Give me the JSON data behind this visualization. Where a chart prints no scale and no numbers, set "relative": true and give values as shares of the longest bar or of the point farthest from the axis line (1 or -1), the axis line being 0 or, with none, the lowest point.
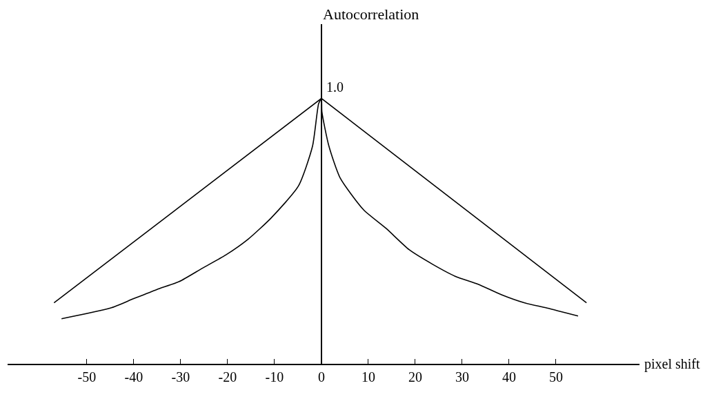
{
  "chart_data": {
    "type": "line",
    "relative": true,
    "ylabel": "Autocorrelation",
    "xlabel": "pixel shift",
    "xlim": [
      -66.9,
      67.8
    ],
    "xticks": [
      -50,
      -40,
      -30,
      -20,
      -10,
      0,
      10,
      20,
      30,
      40,
      50
    ],
    "marker": "none",
    "line_style": "solid",
    "series": [
      {
        "color": "#000000",
        "x": [
          -57,
          0,
          56.5
        ],
        "values": [
          0.23,
          1,
          0.23
        ]
      },
      {
        "color": "#000000",
        "x": [
          -55.4,
          -45,
          -40.1,
          -35.1,
          -30.3,
          -25.4,
          -20.4,
          -15.6,
          -10.7,
          -4.9,
          -1.9,
          -0.6,
          0,
          0.1,
          1.6,
          4.0,
          9.0,
          13.8,
          18.7,
          23.7,
          28.5,
          33.4,
          38.4,
          43.2,
          48.1,
          54.7
        ],
        "values": [
          0.17,
          0.21,
          0.245,
          0.28,
          0.31,
          0.36,
          0.41,
          0.47,
          0.55,
          0.67,
          0.82,
          0.98,
          1,
          0.95,
          0.82,
          0.7,
          0.58,
          0.51,
          0.43,
          0.375,
          0.33,
          0.3,
          0.26,
          0.23,
          0.21,
          0.18
        ]
      }
    ],
    "annotations": [
      {
        "text": "1.0",
        "x": 0,
        "y": 1
      }
    ]
  }
}
